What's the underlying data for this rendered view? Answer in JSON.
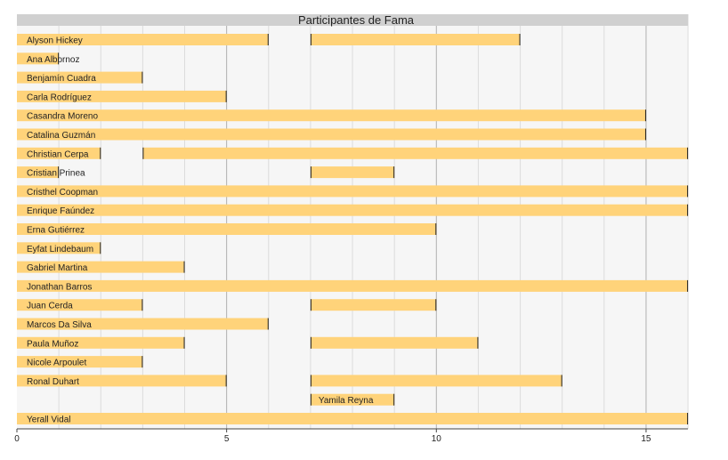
{
  "chart_data": {
    "type": "bar",
    "orientation": "horizontal-timeline",
    "title": "Participantes de Fama",
    "xlim": [
      0,
      16
    ],
    "xticks": [
      0,
      5,
      10,
      15
    ],
    "grid": true,
    "colors": {
      "bar": "#ffd37a",
      "bar_end": "#222222",
      "grid_major": "#b0b0b0",
      "grid_minor": "#dcdcdc",
      "plot_bg": "#f6f6f6",
      "title_bg": "#d0d0d0"
    },
    "rows": [
      {
        "name": "Alyson Hickey",
        "segments": [
          [
            0,
            6
          ],
          [
            7,
            12
          ]
        ]
      },
      {
        "name": "Ana Albornoz",
        "segments": [
          [
            0,
            1
          ]
        ]
      },
      {
        "name": "Benjamín Cuadra",
        "segments": [
          [
            0,
            3
          ]
        ]
      },
      {
        "name": "Carla Rodríguez",
        "segments": [
          [
            0,
            5
          ]
        ]
      },
      {
        "name": "Casandra Moreno",
        "segments": [
          [
            0,
            15
          ]
        ]
      },
      {
        "name": "Catalina Guzmán",
        "segments": [
          [
            0,
            15
          ]
        ]
      },
      {
        "name": "Christian Cerpa",
        "segments": [
          [
            0,
            2
          ],
          [
            3,
            16
          ]
        ]
      },
      {
        "name": "Cristian Prinea",
        "segments": [
          [
            0,
            1
          ],
          [
            7,
            9
          ]
        ]
      },
      {
        "name": "Cristhel Coopman",
        "segments": [
          [
            0,
            16
          ]
        ]
      },
      {
        "name": "Enrique Faúndez",
        "segments": [
          [
            0,
            16
          ]
        ]
      },
      {
        "name": "Erna Gutiérrez",
        "segments": [
          [
            0,
            10
          ]
        ]
      },
      {
        "name": "Eyfat Lindebaum",
        "segments": [
          [
            0,
            2
          ]
        ]
      },
      {
        "name": "Gabriel Martina",
        "segments": [
          [
            0,
            4
          ]
        ]
      },
      {
        "name": "Jonathan Barros",
        "segments": [
          [
            0,
            16
          ]
        ]
      },
      {
        "name": "Juan Cerda",
        "segments": [
          [
            0,
            3
          ],
          [
            7,
            10
          ]
        ]
      },
      {
        "name": "Marcos Da Silva",
        "segments": [
          [
            0,
            6
          ]
        ]
      },
      {
        "name": "Paula Muñoz",
        "segments": [
          [
            0,
            4
          ],
          [
            7,
            11
          ]
        ]
      },
      {
        "name": "Nicole Arpoulet",
        "segments": [
          [
            0,
            3
          ]
        ]
      },
      {
        "name": "Ronal Duhart",
        "segments": [
          [
            0,
            5
          ],
          [
            7,
            13
          ]
        ]
      },
      {
        "name": "Yamila Reyna",
        "segments": [
          [
            7,
            9
          ]
        ]
      },
      {
        "name": "Yerall Vidal",
        "segments": [
          [
            0,
            16
          ]
        ]
      }
    ]
  }
}
